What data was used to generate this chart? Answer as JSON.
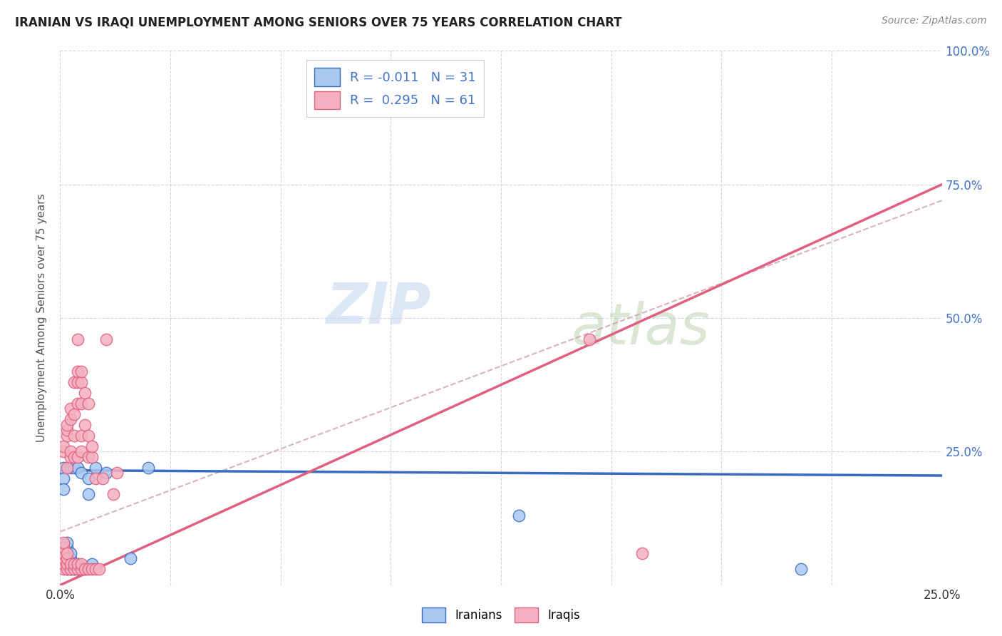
{
  "title": "IRANIAN VS IRAQI UNEMPLOYMENT AMONG SENIORS OVER 75 YEARS CORRELATION CHART",
  "source": "Source: ZipAtlas.com",
  "ylabel": "Unemployment Among Seniors over 75 years",
  "xlim": [
    0.0,
    0.25
  ],
  "ylim": [
    0.0,
    1.0
  ],
  "legend_label1": "Iranians",
  "legend_label2": "Iraqis",
  "R_iranian": -0.011,
  "N_iranian": 31,
  "R_iraqi": 0.295,
  "N_iraqi": 61,
  "color_iranian": "#a8c8f0",
  "color_iraqi": "#f4b0c0",
  "color_iranian_line": "#3a6bbf",
  "color_iraqi_line": "#e06080",
  "color_trend_dashed": "#d0a0b0",
  "background_color": "#ffffff",
  "grid_color": "#c8d4e8",
  "watermark_zip": "ZIP",
  "watermark_atlas": "atlas",
  "watermark_color_zip": "#c8d8f0",
  "watermark_color_atlas": "#b0c8a0",
  "iranians_x": [
    0.001,
    0.001,
    0.001,
    0.002,
    0.002,
    0.002,
    0.002,
    0.002,
    0.002,
    0.003,
    0.003,
    0.003,
    0.003,
    0.003,
    0.004,
    0.004,
    0.004,
    0.005,
    0.005,
    0.005,
    0.006,
    0.007,
    0.008,
    0.008,
    0.009,
    0.01,
    0.013,
    0.02,
    0.025,
    0.13,
    0.21
  ],
  "iranians_y": [
    0.22,
    0.2,
    0.18,
    0.05,
    0.06,
    0.07,
    0.08,
    0.03,
    0.04,
    0.03,
    0.04,
    0.05,
    0.06,
    0.22,
    0.03,
    0.04,
    0.22,
    0.03,
    0.04,
    0.22,
    0.21,
    0.03,
    0.17,
    0.2,
    0.04,
    0.22,
    0.21,
    0.05,
    0.22,
    0.13,
    0.03
  ],
  "iraqis_x": [
    0.001,
    0.001,
    0.001,
    0.001,
    0.001,
    0.001,
    0.001,
    0.001,
    0.002,
    0.002,
    0.002,
    0.002,
    0.002,
    0.002,
    0.002,
    0.002,
    0.003,
    0.003,
    0.003,
    0.003,
    0.003,
    0.003,
    0.004,
    0.004,
    0.004,
    0.004,
    0.004,
    0.004,
    0.005,
    0.005,
    0.005,
    0.005,
    0.005,
    0.005,
    0.005,
    0.006,
    0.006,
    0.006,
    0.006,
    0.006,
    0.006,
    0.006,
    0.007,
    0.007,
    0.007,
    0.008,
    0.008,
    0.008,
    0.008,
    0.009,
    0.009,
    0.009,
    0.01,
    0.01,
    0.011,
    0.012,
    0.013,
    0.015,
    0.016,
    0.15,
    0.165
  ],
  "iraqis_y": [
    0.03,
    0.04,
    0.05,
    0.06,
    0.07,
    0.08,
    0.25,
    0.26,
    0.03,
    0.04,
    0.05,
    0.06,
    0.28,
    0.29,
    0.3,
    0.22,
    0.03,
    0.04,
    0.24,
    0.25,
    0.31,
    0.33,
    0.03,
    0.04,
    0.24,
    0.28,
    0.32,
    0.38,
    0.03,
    0.04,
    0.24,
    0.34,
    0.38,
    0.4,
    0.46,
    0.03,
    0.04,
    0.25,
    0.28,
    0.34,
    0.38,
    0.4,
    0.03,
    0.3,
    0.36,
    0.03,
    0.24,
    0.28,
    0.34,
    0.03,
    0.24,
    0.26,
    0.03,
    0.2,
    0.03,
    0.2,
    0.46,
    0.17,
    0.21,
    0.46,
    0.06
  ]
}
